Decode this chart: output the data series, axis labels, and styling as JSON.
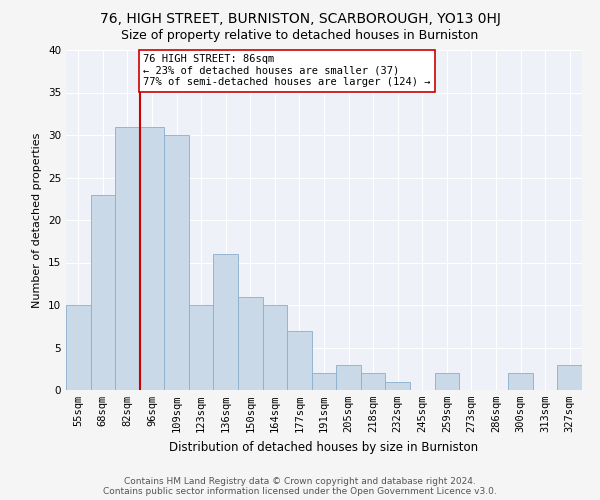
{
  "title1": "76, HIGH STREET, BURNISTON, SCARBOROUGH, YO13 0HJ",
  "title2": "Size of property relative to detached houses in Burniston",
  "xlabel": "Distribution of detached houses by size in Burniston",
  "ylabel": "Number of detached properties",
  "categories": [
    "55sqm",
    "68sqm",
    "82sqm",
    "96sqm",
    "109sqm",
    "123sqm",
    "136sqm",
    "150sqm",
    "164sqm",
    "177sqm",
    "191sqm",
    "205sqm",
    "218sqm",
    "232sqm",
    "245sqm",
    "259sqm",
    "273sqm",
    "286sqm",
    "300sqm",
    "313sqm",
    "327sqm"
  ],
  "values": [
    10,
    23,
    31,
    31,
    30,
    10,
    16,
    11,
    10,
    7,
    2,
    3,
    2,
    1,
    0,
    2,
    0,
    0,
    2,
    0,
    3
  ],
  "bar_color": "#c9d9e8",
  "bar_edge_color": "#8aaecc",
  "vline_x": 2.5,
  "annotation_line1": "76 HIGH STREET: 86sqm",
  "annotation_line2": "← 23% of detached houses are smaller (37)",
  "annotation_line3": "77% of semi-detached houses are larger (124) →",
  "annotation_box_color": "#ffffff",
  "annotation_box_edge": "#cc0000",
  "vline_color": "#cc0000",
  "ylim": [
    0,
    40
  ],
  "yticks": [
    0,
    5,
    10,
    15,
    20,
    25,
    30,
    35,
    40
  ],
  "footer1": "Contains HM Land Registry data © Crown copyright and database right 2024.",
  "footer2": "Contains public sector information licensed under the Open Government Licence v3.0.",
  "bg_color": "#eef2f8",
  "grid_color": "#ffffff",
  "title1_fontsize": 10,
  "title2_fontsize": 9,
  "xlabel_fontsize": 8.5,
  "ylabel_fontsize": 8,
  "tick_fontsize": 7.5,
  "annotation_fontsize": 7.5,
  "footer_fontsize": 6.5
}
